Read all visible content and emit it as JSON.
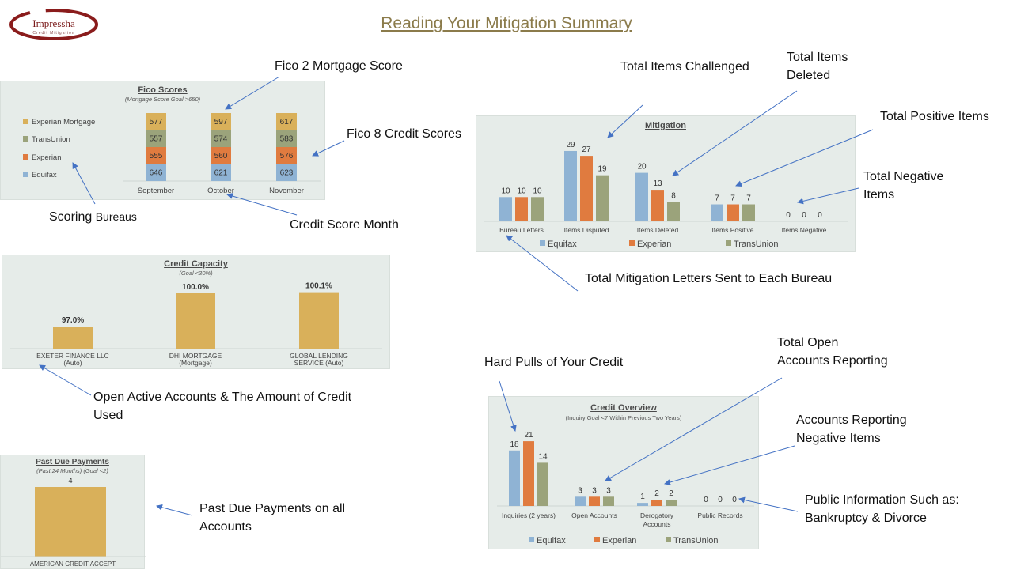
{
  "page_title": "Reading Your Mitigation Summary",
  "logo": {
    "name": "Impressha",
    "tagline": "Credit Mitigation"
  },
  "colors": {
    "equifax": "#8fb3d4",
    "experian": "#e07b3f",
    "transunion": "#9ba37b",
    "mortgage": "#d9b05a",
    "gold": "#d9b05a",
    "panel": "#e6ece9"
  },
  "annotations": {
    "fico2": "Fico 2 Mortgage Score",
    "fico8": "Fico 8 Credit Scores",
    "scoring_a": "Scoring",
    "scoring_b": "Bureaus",
    "month": "Credit Score Month",
    "challenged": "Total Items Challenged",
    "deleted": "Total Items\nDeleted",
    "positive": "Total Positive Items",
    "negative": "Total Negative\nItems",
    "letters": "Total Mitigation Letters Sent to Each Bureau",
    "open_active": "Open Active Accounts & The Amount of Credit\nUsed",
    "past_due": "Past Due Payments on all\nAccounts",
    "hard_pulls": "Hard Pulls of Your Credit",
    "open_total": "Total Open\nAccounts Reporting",
    "neg_accounts": "Accounts Reporting\nNegative Items",
    "public_info": "Public Information Such as:\nBankruptcy & Divorce"
  },
  "chart_data": [
    {
      "id": "fico",
      "type": "bar",
      "stacked": true,
      "title": "Fico Scores",
      "subtitle": "(Mortgage Score Goal >650)",
      "categories": [
        "September",
        "October",
        "November"
      ],
      "series": [
        {
          "name": "Equifax",
          "color": "#8fb3d4",
          "values": [
            646,
            621,
            623
          ]
        },
        {
          "name": "Experian",
          "color": "#e07b3f",
          "values": [
            555,
            560,
            576
          ]
        },
        {
          "name": "TransUnion",
          "color": "#9ba37b",
          "values": [
            557,
            574,
            583
          ]
        },
        {
          "name": "Experian Mortgage",
          "color": "#d9b05a",
          "values": [
            577,
            597,
            617
          ]
        }
      ],
      "legend": "left"
    },
    {
      "id": "capacity",
      "type": "bar",
      "title": "Credit Capacity",
      "subtitle": "(Goal <30%)",
      "categories": [
        [
          "EXETER FINANCE LLC",
          "(Auto)"
        ],
        [
          "DHI MORTGAGE",
          "(Mortgage)"
        ],
        [
          "GLOBAL LENDING",
          "SERVICE (Auto)"
        ]
      ],
      "values": [
        97.0,
        100.0,
        100.1
      ],
      "labels": [
        "97.0%",
        "100.0%",
        "100.1%"
      ],
      "ylim": [
        95,
        101
      ]
    },
    {
      "id": "mitigation",
      "type": "bar",
      "title": "Mitigation",
      "categories": [
        "Bureau Letters",
        "Items Disputed",
        "Items Deleted",
        "Items Positive",
        "Items Negative"
      ],
      "series": [
        {
          "name": "Equifax",
          "color": "#8fb3d4",
          "values": [
            10,
            29,
            20,
            7,
            0
          ]
        },
        {
          "name": "Experian",
          "color": "#e07b3f",
          "values": [
            10,
            27,
            13,
            7,
            0
          ]
        },
        {
          "name": "TransUnion",
          "color": "#9ba37b",
          "values": [
            10,
            19,
            8,
            7,
            0
          ]
        }
      ],
      "legend": "bottom"
    },
    {
      "id": "overview",
      "type": "bar",
      "title": "Credit Overview",
      "subtitle": "(Inquiry Goal <7 Within Previous Two Years)",
      "categories": [
        [
          "Inquiries (2 years)"
        ],
        [
          "Open Accounts"
        ],
        [
          "Derogatory",
          "Accounts"
        ],
        [
          "Public Records"
        ]
      ],
      "series": [
        {
          "name": "Equifax",
          "color": "#8fb3d4",
          "values": [
            18,
            3,
            1,
            0
          ]
        },
        {
          "name": "Experian",
          "color": "#e07b3f",
          "values": [
            21,
            3,
            2,
            0
          ]
        },
        {
          "name": "TransUnion",
          "color": "#9ba37b",
          "values": [
            14,
            3,
            2,
            0
          ]
        }
      ],
      "legend": "bottom"
    },
    {
      "id": "pastdue",
      "type": "bar",
      "title": "Past Due Payments",
      "subtitle": "(Past 24 Months) (Goal <2)",
      "categories": [
        "AMERICAN CREDIT ACCEPT"
      ],
      "values": [
        4
      ]
    }
  ]
}
